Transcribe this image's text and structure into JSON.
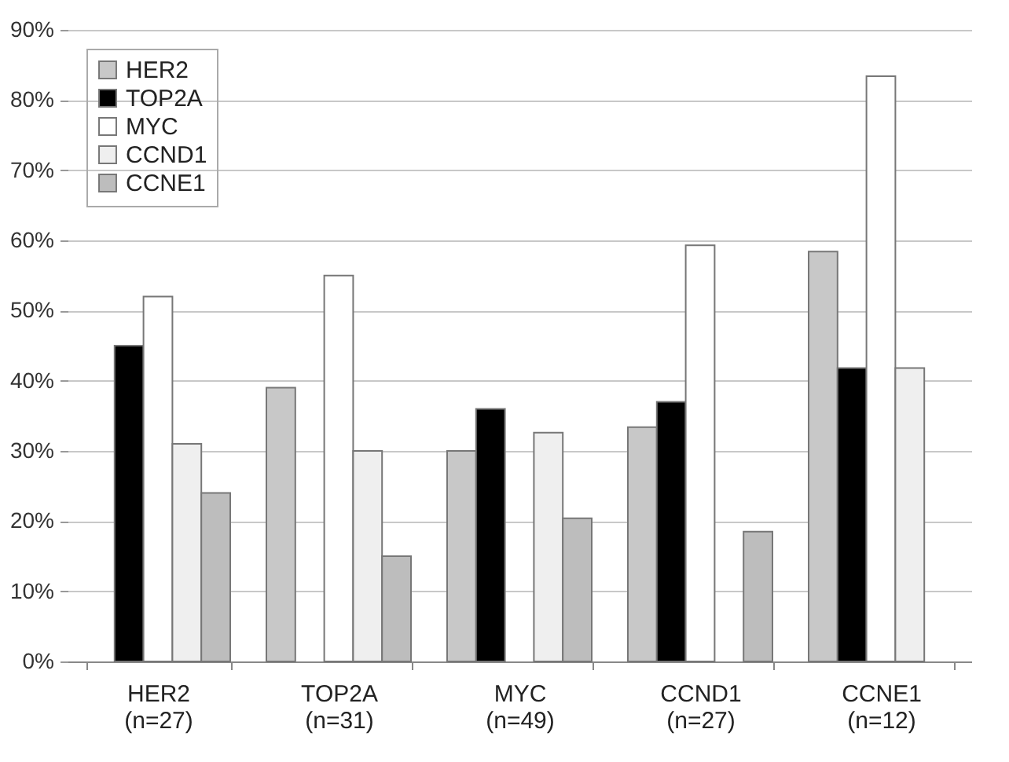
{
  "chart_data": {
    "type": "bar",
    "categories": [
      "HER2\n(n=27)",
      "TOP2A\n(n=31)",
      "MYC\n(n=49)",
      "CCND1\n(n=27)",
      "CCNE1\n(n=12)"
    ],
    "series": [
      {
        "name": "HER2",
        "color": "#c8c8c8",
        "values": [
          null,
          39,
          30,
          33.4,
          58.4
        ]
      },
      {
        "name": "TOP2A",
        "color": "#000000",
        "values": [
          45,
          null,
          36,
          37,
          41.8
        ]
      },
      {
        "name": "MYC",
        "color": "#ffffff",
        "values": [
          52,
          55,
          null,
          59.3,
          83.4
        ]
      },
      {
        "name": "CCND1",
        "color": "#efefef",
        "values": [
          31,
          30,
          32.6,
          null,
          41.8
        ]
      },
      {
        "name": "CCNE1",
        "color": "#bdbdbd",
        "values": [
          24,
          15,
          20.4,
          18.5,
          null
        ]
      }
    ],
    "ylim": [
      0,
      90
    ],
    "yticks": [
      {
        "value": 0,
        "label": "0%"
      },
      {
        "value": 10,
        "label": "10%"
      },
      {
        "value": 20,
        "label": "20%"
      },
      {
        "value": 30,
        "label": "30%"
      },
      {
        "value": 40,
        "label": "40%"
      },
      {
        "value": 50,
        "label": "50%"
      },
      {
        "value": 60,
        "label": "60%"
      },
      {
        "value": 70,
        "label": "70%"
      },
      {
        "value": 80,
        "label": "80%"
      },
      {
        "value": 90,
        "label": "90%"
      }
    ],
    "grid": "y",
    "legend": "top left"
  }
}
